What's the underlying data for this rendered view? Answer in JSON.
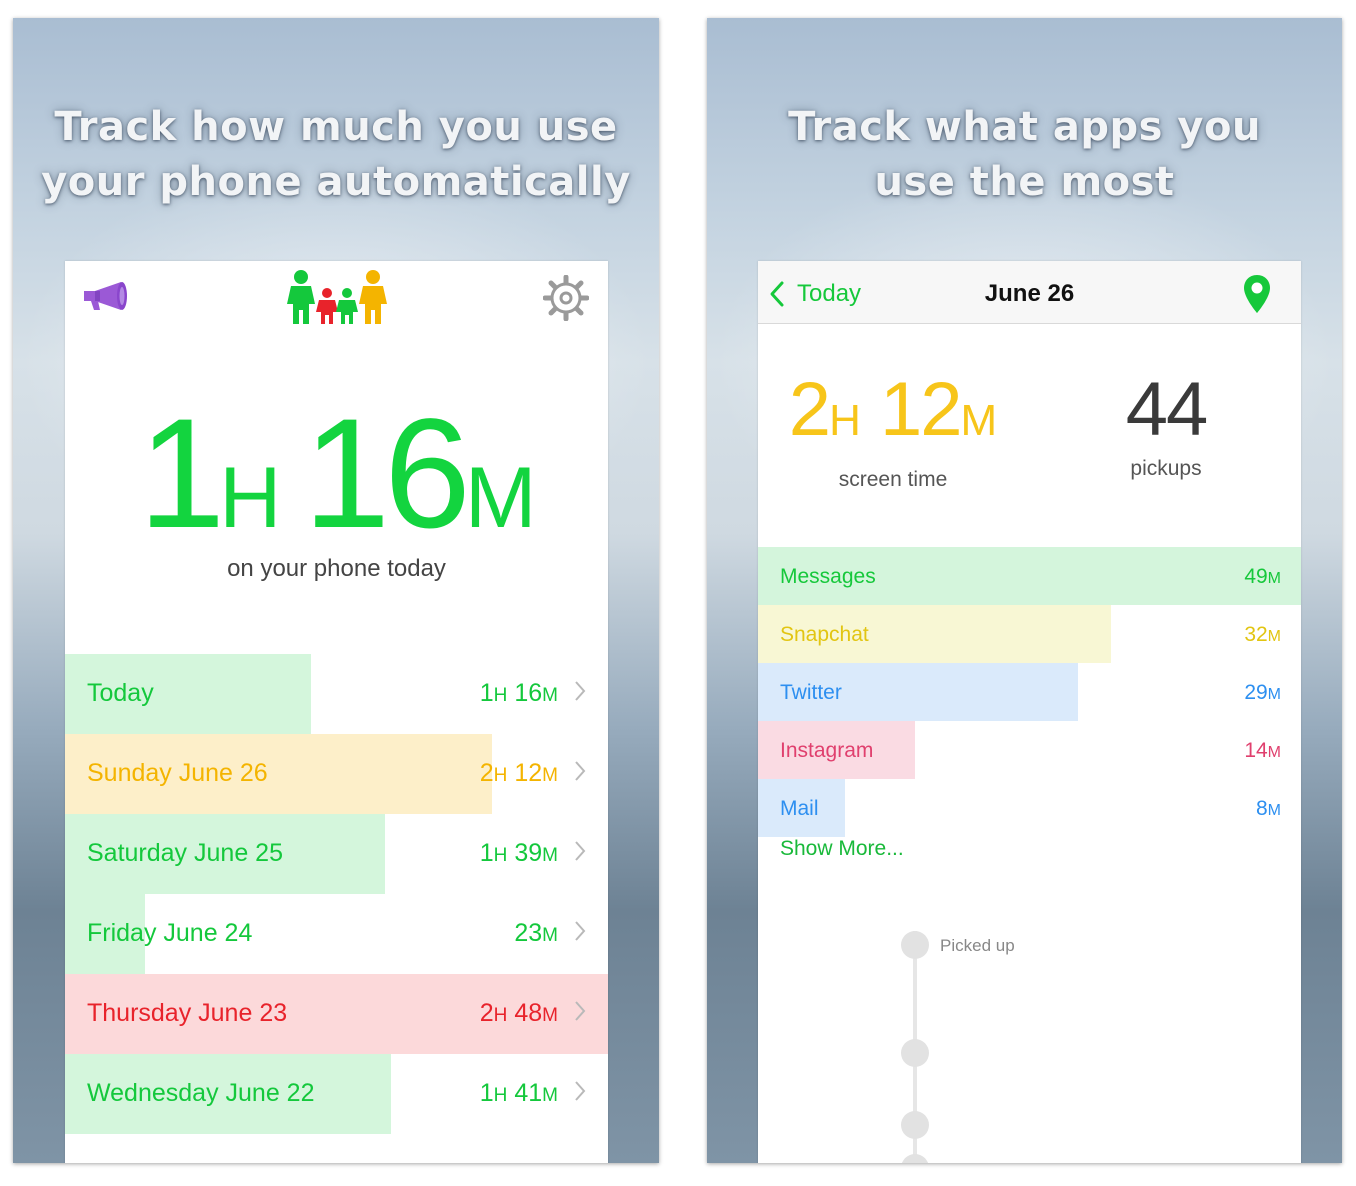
{
  "left": {
    "headline": [
      "Track how much you use",
      "your phone automatically"
    ],
    "total": {
      "hours": "1",
      "hour_unit": "H",
      "minutes": "16",
      "minute_unit": "M",
      "caption": "on your phone today"
    },
    "icons": {
      "announce": "megaphone-icon",
      "family": "family-icon",
      "settings": "gear-icon",
      "row_chevron": "chevron-right-icon"
    },
    "days": [
      {
        "label": "Today",
        "h": "1",
        "m": "16",
        "minutes_total": 76,
        "text_color": "#14c83c",
        "bar_color": "#d4f6dc"
      },
      {
        "label": "Sunday June 26",
        "h": "2",
        "m": "12",
        "minutes_total": 132,
        "text_color": "#f4b400",
        "bar_color": "#fdefc9"
      },
      {
        "label": "Saturday June 25",
        "h": "1",
        "m": "39",
        "minutes_total": 99,
        "text_color": "#14c83c",
        "bar_color": "#d4f6dc"
      },
      {
        "label": "Friday June 24",
        "h": "",
        "m": "23",
        "minutes_total": 23,
        "text_color": "#14c83c",
        "bar_color": "#d4f6dc"
      },
      {
        "label": "Thursday June 23",
        "h": "2",
        "m": "48",
        "minutes_total": 168,
        "text_color": "#e8232b",
        "bar_color": "#fcd9da"
      },
      {
        "label": "Wednesday June 22",
        "h": "1",
        "m": "41",
        "minutes_total": 101,
        "text_color": "#14c83c",
        "bar_color": "#d4f6dc"
      }
    ]
  },
  "right": {
    "headline": [
      "Track what apps you",
      "use the most"
    ],
    "nav": {
      "back_label": "Today",
      "title": "June 26",
      "back_icon": "chevron-left-icon",
      "location_icon": "map-pin-icon"
    },
    "screen_time": {
      "hours": "2",
      "hour_unit": "H",
      "minutes": "12",
      "minute_unit": "M",
      "label": "screen time"
    },
    "pickups": {
      "value": "44",
      "label": "pickups"
    },
    "apps": [
      {
        "name": "Messages",
        "minutes": "49",
        "unit": "M",
        "share": 1.0,
        "text_color": "#16c83b",
        "bar_color": "#d4f5dc"
      },
      {
        "name": "Snapchat",
        "minutes": "32",
        "unit": "M",
        "share": 0.65,
        "text_color": "#e2c512",
        "bar_color": "#f8f7d4"
      },
      {
        "name": "Twitter",
        "minutes": "29",
        "unit": "M",
        "share": 0.59,
        "text_color": "#2d8ff0",
        "bar_color": "#daeafb"
      },
      {
        "name": "Instagram",
        "minutes": "14",
        "unit": "M",
        "share": 0.29,
        "text_color": "#e0406e",
        "bar_color": "#fadbe3"
      },
      {
        "name": "Mail",
        "minutes": "8",
        "unit": "M",
        "share": 0.16,
        "text_color": "#2d8ff0",
        "bar_color": "#daeafb"
      }
    ],
    "show_more": "Show More...",
    "timeline": {
      "first_label": "Picked up"
    }
  }
}
